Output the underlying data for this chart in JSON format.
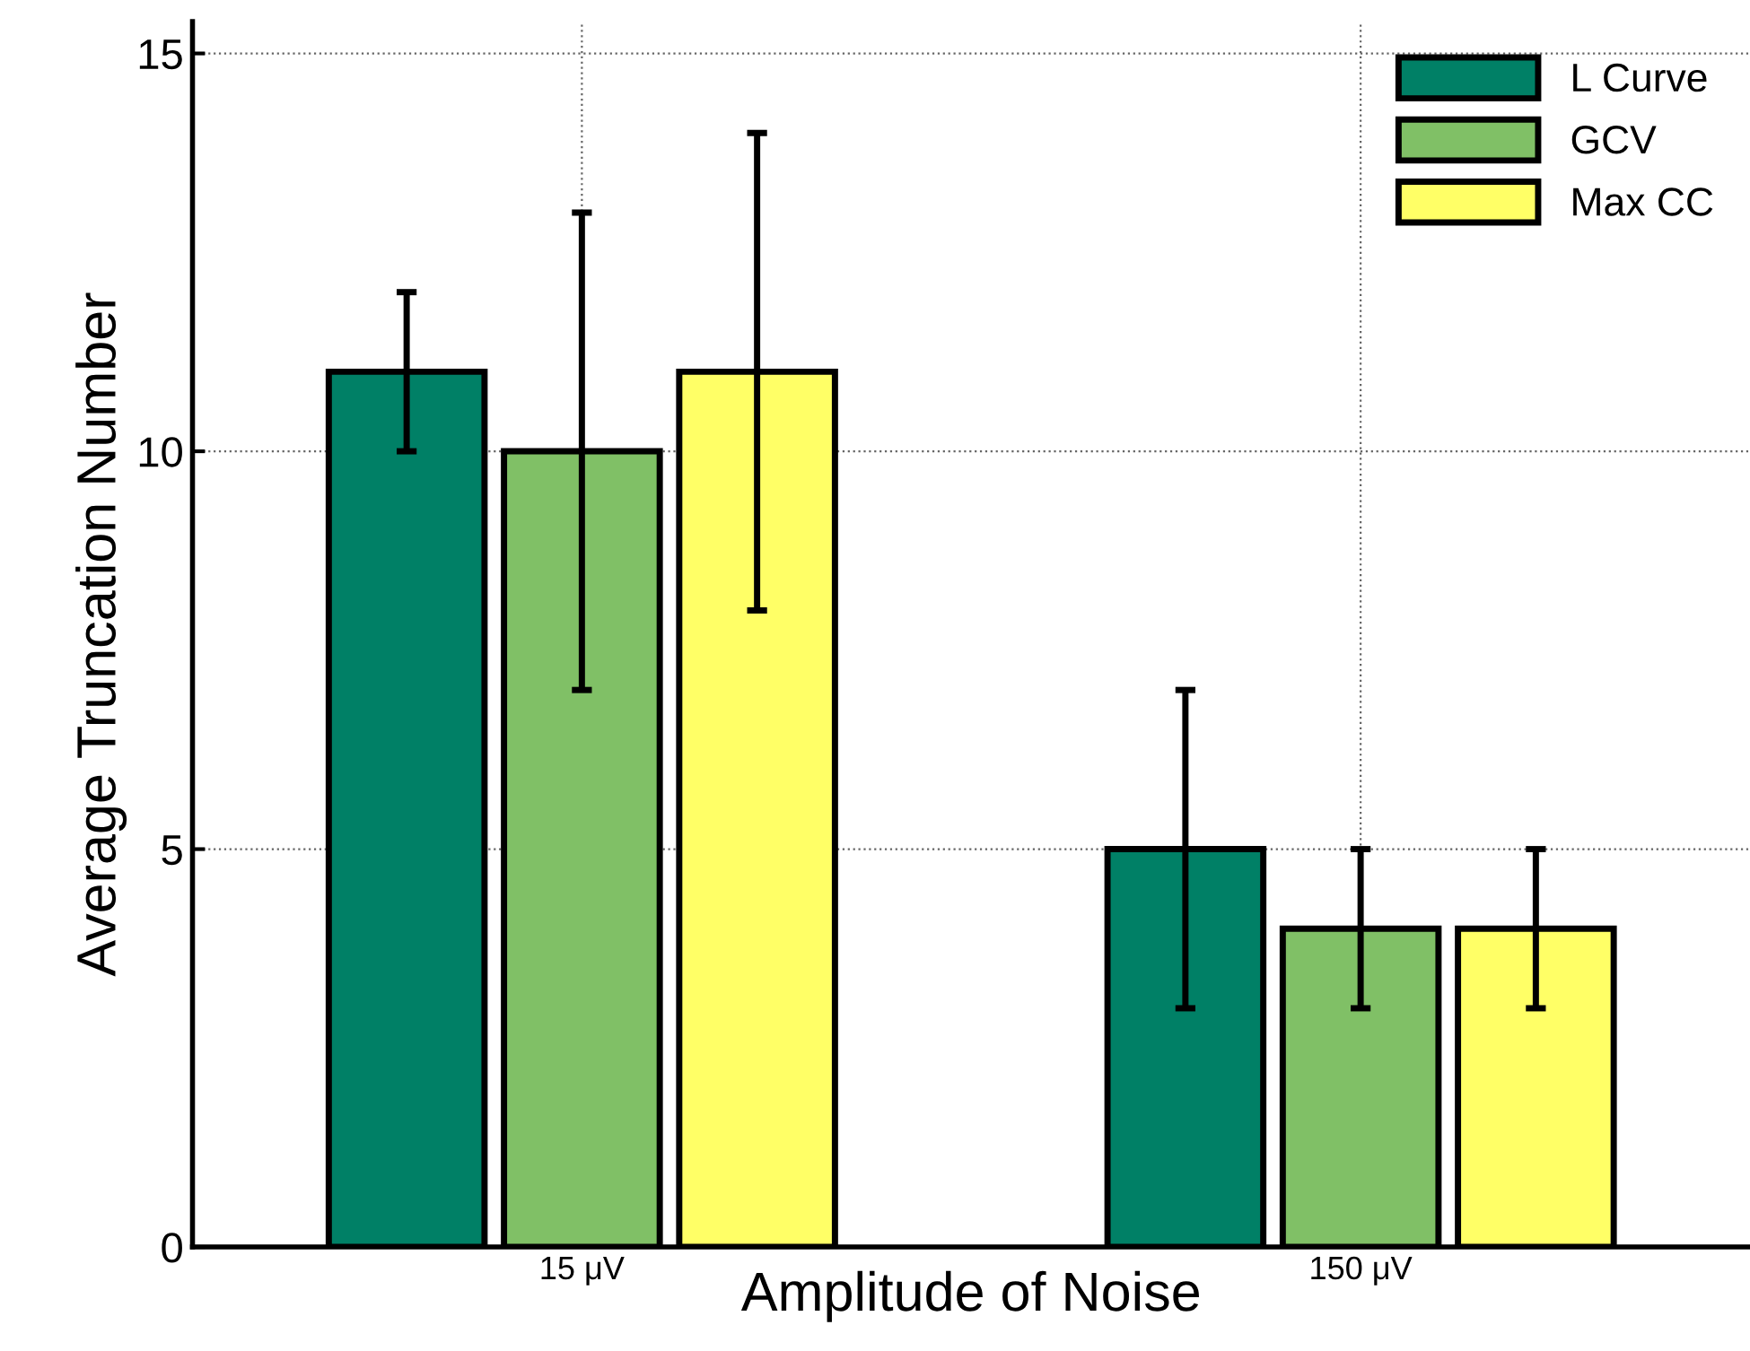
{
  "chart_data": {
    "type": "bar",
    "xlabel": "Amplitude of Noise",
    "ylabel": "Average Truncation Number",
    "categories": [
      "15 μV",
      "150 μV"
    ],
    "series": [
      {
        "name": "L Curve",
        "color": "#008066",
        "values": [
          11,
          5
        ],
        "errors": [
          1,
          2
        ]
      },
      {
        "name": "GCV",
        "color": "#80c066",
        "values": [
          10,
          4
        ],
        "errors": [
          3,
          1
        ]
      },
      {
        "name": "Max CC",
        "color": "#ffff66",
        "values": [
          11,
          4
        ],
        "errors": [
          3,
          1
        ]
      }
    ],
    "ylim": [
      0,
      15.4
    ],
    "yticks": [
      0,
      5,
      10,
      15
    ],
    "grid": true,
    "legend": "top right"
  }
}
